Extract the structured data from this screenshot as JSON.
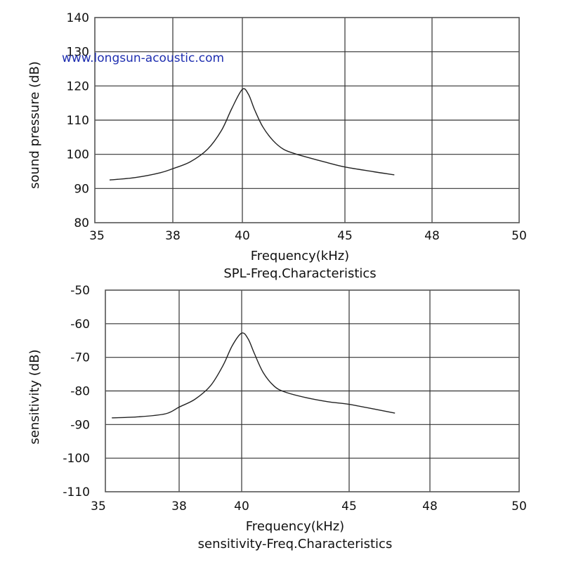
{
  "watermark": "www.longsun-acoustic.com",
  "chart_data": [
    {
      "type": "line",
      "title": "SPL-Freq.Characteristics",
      "xlabel": "Frequency(kHz)",
      "ylabel": "sound pressure (dB)",
      "x_ticks": [
        "35",
        "38",
        "40",
        "45",
        "48",
        "50"
      ],
      "y_ticks": [
        "140",
        "130",
        "120",
        "110",
        "100",
        "90",
        "80"
      ],
      "xlim": [
        35,
        50
      ],
      "ylim": [
        80,
        140
      ],
      "grid": true,
      "series": [
        {
          "x": [
            35.5,
            36.5,
            37.5,
            38.0,
            38.5,
            39.0,
            39.4,
            39.7,
            40.0,
            40.3,
            40.6,
            41.0,
            41.5,
            42.0,
            42.5,
            43.0,
            44.0,
            45.0,
            46.0,
            46.7
          ],
          "values": [
            92.5,
            93.2,
            94.6,
            95.8,
            97.8,
            101.5,
            107.0,
            113.5,
            119.0,
            117.5,
            113.0,
            108.0,
            104.0,
            101.5,
            100.3,
            99.4,
            97.8,
            96.3,
            94.9,
            94.0
          ]
        }
      ]
    },
    {
      "type": "line",
      "title": "sensitivity-Freq.Characteristics",
      "xlabel": "Frequency(kHz)",
      "ylabel": "sensitivity (dB)",
      "x_ticks": [
        "35",
        "38",
        "40",
        "45",
        "48",
        "50"
      ],
      "y_ticks": [
        "-50",
        "-60",
        "-70",
        "-80",
        "-90",
        "-100",
        "-110"
      ],
      "xlim": [
        35,
        50
      ],
      "ylim": [
        -110,
        -50
      ],
      "grid": true,
      "series": [
        {
          "x": [
            35.5,
            36.5,
            37.5,
            38.0,
            38.5,
            39.0,
            39.4,
            39.7,
            40.0,
            40.3,
            40.6,
            41.0,
            41.5,
            42.0,
            43.0,
            44.0,
            45.0,
            46.0,
            46.7
          ],
          "values": [
            -88.0,
            -87.7,
            -86.8,
            -84.8,
            -82.5,
            -78.5,
            -72.5,
            -66.5,
            -62.8,
            -64.5,
            -69.0,
            -74.5,
            -78.5,
            -80.3,
            -82.0,
            -83.2,
            -84.0,
            -85.5,
            -86.6
          ]
        }
      ]
    }
  ]
}
